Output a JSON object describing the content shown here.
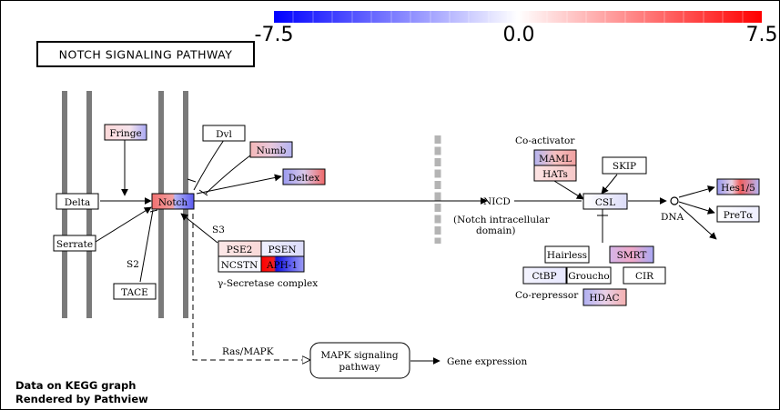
{
  "title": "NOTCH SIGNALING PATHWAY",
  "color_scale": {
    "min_label": "-7.5",
    "mid_label": "0.0",
    "max_label": "7.5",
    "low_color": "#0000ff",
    "mid_color": "#ffffff",
    "high_color": "#ff0000"
  },
  "footer": {
    "line1": "Data on KEGG graph",
    "line2": "Rendered by Pathview"
  },
  "nodes": {
    "fringe": "Fringe",
    "dvl": "Dvl",
    "numb": "Numb",
    "deltex": "Deltex",
    "delta": "Delta",
    "notch": "Notch",
    "serrate": "Serrate",
    "tace": "TACE",
    "pse2": "PSE2",
    "psen": "PSEN",
    "ncstn": "NCSTN",
    "aph1": "APH-1",
    "maml": "MAML",
    "hats": "HATs",
    "skip": "SKIP",
    "csl": "CSL",
    "hes15": "Hes1/5",
    "pretalpha": "PreTα",
    "hairless": "Hairless",
    "smrt": "SMRT",
    "ctbp": "CtBP",
    "groucho": "Groucho",
    "cir": "CIR",
    "hdac": "HDAC",
    "mapk": "MAPK signaling",
    "mapk2": "pathway"
  },
  "labels": {
    "s2": "S2",
    "s3": "S3",
    "gamma_secretase": "γ-Secretase complex",
    "nicd": "NICD",
    "nicd_desc1": "(Notch intracellular",
    "nicd_desc2": "domain)",
    "coactivator": "Co-activator",
    "corepressor": "Co-repressor",
    "dna": "DNA",
    "ras_mapk": "Ras/MAPK",
    "gene_expression": "Gene expression"
  }
}
